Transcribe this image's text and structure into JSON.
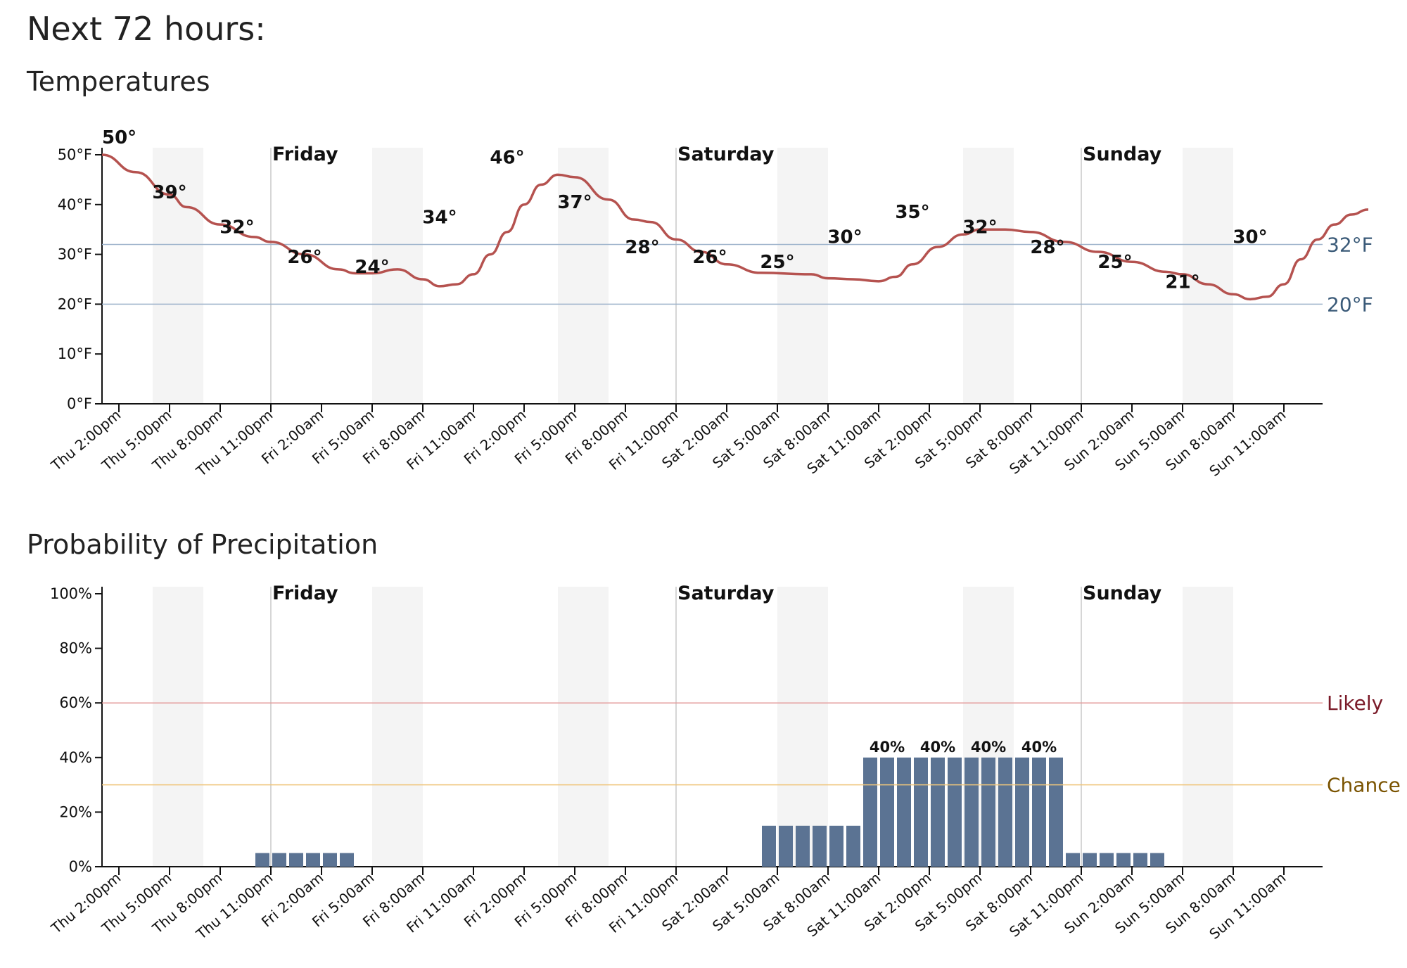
{
  "page": {
    "title": "Next 72 hours:",
    "temp_title": "Temperatures",
    "precip_title": "Probability of Precipitation"
  },
  "colors": {
    "temp_line": "#b5524f",
    "bar": "#5b7393",
    "freezing_line": "#9fb4cc",
    "likely": "#7a1a28",
    "chance": "#7a5300",
    "likely_line": "#e39a9a",
    "chance_line": "#efc57a",
    "night_shade": "#f4f4f4",
    "day_line": "#c8c8c8"
  },
  "chart_data": [
    {
      "type": "line",
      "title": "Temperatures",
      "x_unit": "hours from Thu 1:00pm",
      "x_range": [
        0,
        72
      ],
      "ylim": [
        0,
        50
      ],
      "y_ticks": [
        {
          "value": 0,
          "label": "0°F"
        },
        {
          "value": 10,
          "label": "10°F"
        },
        {
          "value": 20,
          "label": "20°F"
        },
        {
          "value": 30,
          "label": "30°F"
        },
        {
          "value": 40,
          "label": "40°F"
        },
        {
          "value": 50,
          "label": "50°F"
        }
      ],
      "x_ticks": [
        {
          "x": 1,
          "label": "Thu 2:00pm"
        },
        {
          "x": 4,
          "label": "Thu 5:00pm"
        },
        {
          "x": 7,
          "label": "Thu 8:00pm"
        },
        {
          "x": 10,
          "label": "Thu 11:00pm"
        },
        {
          "x": 13,
          "label": "Fri 2:00am"
        },
        {
          "x": 16,
          "label": "Fri 5:00am"
        },
        {
          "x": 19,
          "label": "Fri 8:00am"
        },
        {
          "x": 22,
          "label": "Fri 11:00am"
        },
        {
          "x": 25,
          "label": "Fri 2:00pm"
        },
        {
          "x": 28,
          "label": "Fri 5:00pm"
        },
        {
          "x": 31,
          "label": "Fri 8:00pm"
        },
        {
          "x": 34,
          "label": "Fri 11:00pm"
        },
        {
          "x": 37,
          "label": "Sat 2:00am"
        },
        {
          "x": 40,
          "label": "Sat 5:00am"
        },
        {
          "x": 43,
          "label": "Sat 8:00am"
        },
        {
          "x": 46,
          "label": "Sat 11:00am"
        },
        {
          "x": 49,
          "label": "Sat 2:00pm"
        },
        {
          "x": 52,
          "label": "Sat 5:00pm"
        },
        {
          "x": 55,
          "label": "Sat 8:00pm"
        },
        {
          "x": 58,
          "label": "Sat 11:00pm"
        },
        {
          "x": 61,
          "label": "Sun 2:00am"
        },
        {
          "x": 64,
          "label": "Sun 5:00am"
        },
        {
          "x": 67,
          "label": "Sun 8:00am"
        },
        {
          "x": 70,
          "label": "Sun 11:00am"
        }
      ],
      "day_markers": [
        {
          "x": 10,
          "label": "Friday"
        },
        {
          "x": 34,
          "label": "Saturday"
        },
        {
          "x": 58,
          "label": "Sunday"
        }
      ],
      "night_bands": [
        [
          3,
          6
        ],
        [
          16,
          19
        ],
        [
          27,
          30
        ],
        [
          40,
          43
        ],
        [
          51,
          54
        ],
        [
          64,
          67
        ]
      ],
      "reference_lines": [
        {
          "value": 32,
          "label": "32°F"
        },
        {
          "value": 20,
          "label": "20°F"
        }
      ],
      "series": [
        {
          "values": [
            [
              0,
              50
            ],
            [
              2,
              46.5
            ],
            [
              4,
              42
            ],
            [
              5,
              39.5
            ],
            [
              7,
              36
            ],
            [
              9,
              33.5
            ],
            [
              10,
              32.5
            ],
            [
              12,
              30
            ],
            [
              14,
              27
            ],
            [
              15,
              26.2
            ],
            [
              16,
              26.2
            ],
            [
              17.5,
              27
            ],
            [
              19,
              25
            ],
            [
              20,
              23.6
            ],
            [
              21,
              24
            ],
            [
              22,
              26
            ],
            [
              23,
              30
            ],
            [
              24,
              34.5
            ],
            [
              25,
              40
            ],
            [
              26,
              44
            ],
            [
              27,
              46
            ],
            [
              28,
              45.5
            ],
            [
              30,
              41
            ],
            [
              31.5,
              37
            ],
            [
              32.5,
              36.5
            ],
            [
              34,
              33
            ],
            [
              35.5,
              30.5
            ],
            [
              37,
              28
            ],
            [
              39,
              26.3
            ],
            [
              42,
              26
            ],
            [
              43,
              25.2
            ],
            [
              44.5,
              25
            ],
            [
              46,
              24.6
            ],
            [
              47,
              25.5
            ],
            [
              48,
              28
            ],
            [
              49.5,
              31.5
            ],
            [
              51,
              34
            ],
            [
              52,
              35
            ],
            [
              53.5,
              35
            ],
            [
              55,
              34.5
            ],
            [
              57,
              32.5
            ],
            [
              59,
              30.5
            ],
            [
              61,
              28.5
            ],
            [
              63,
              26.5
            ],
            [
              64,
              26
            ],
            [
              65.5,
              24
            ],
            [
              67,
              22
            ],
            [
              68,
              21
            ],
            [
              69,
              21.5
            ],
            [
              70,
              24
            ],
            [
              71,
              29
            ],
            [
              72,
              33
            ],
            [
              73,
              36
            ],
            [
              74,
              38
            ],
            [
              75,
              39
            ]
          ]
        }
      ],
      "annotations": [
        {
          "x": 0,
          "y": 50,
          "label": "50°"
        },
        {
          "x": 4,
          "y": 39,
          "label": "39°"
        },
        {
          "x": 8,
          "y": 32,
          "label": "32°"
        },
        {
          "x": 12,
          "y": 26,
          "label": "26°"
        },
        {
          "x": 16,
          "y": 24,
          "label": "24°"
        },
        {
          "x": 20,
          "y": 34,
          "label": "34°"
        },
        {
          "x": 24,
          "y": 46,
          "label": "46°"
        },
        {
          "x": 28,
          "y": 37,
          "label": "37°"
        },
        {
          "x": 32,
          "y": 28,
          "label": "28°"
        },
        {
          "x": 36,
          "y": 26,
          "label": "26°"
        },
        {
          "x": 40,
          "y": 25,
          "label": "25°"
        },
        {
          "x": 44,
          "y": 30,
          "label": "30°"
        },
        {
          "x": 48,
          "y": 35,
          "label": "35°"
        },
        {
          "x": 52,
          "y": 32,
          "label": "32°"
        },
        {
          "x": 56,
          "y": 28,
          "label": "28°"
        },
        {
          "x": 60,
          "y": 25,
          "label": "25°"
        },
        {
          "x": 64,
          "y": 21,
          "label": "21°"
        },
        {
          "x": 68,
          "y": 30,
          "label": "30°"
        }
      ]
    },
    {
      "type": "bar",
      "title": "Probability of Precipitation",
      "x_unit": "hours from Thu 1:00pm",
      "x_range": [
        0,
        72
      ],
      "ylim": [
        0,
        100
      ],
      "y_ticks": [
        {
          "value": 0,
          "label": "0%"
        },
        {
          "value": 20,
          "label": "20%"
        },
        {
          "value": 40,
          "label": "40%"
        },
        {
          "value": 60,
          "label": "60%"
        },
        {
          "value": 80,
          "label": "80%"
        },
        {
          "value": 100,
          "label": "100%"
        }
      ],
      "x_ticks": [
        {
          "x": 1,
          "label": "Thu 2:00pm"
        },
        {
          "x": 4,
          "label": "Thu 5:00pm"
        },
        {
          "x": 7,
          "label": "Thu 8:00pm"
        },
        {
          "x": 10,
          "label": "Thu 11:00pm"
        },
        {
          "x": 13,
          "label": "Fri 2:00am"
        },
        {
          "x": 16,
          "label": "Fri 5:00am"
        },
        {
          "x": 19,
          "label": "Fri 8:00am"
        },
        {
          "x": 22,
          "label": "Fri 11:00am"
        },
        {
          "x": 25,
          "label": "Fri 2:00pm"
        },
        {
          "x": 28,
          "label": "Fri 5:00pm"
        },
        {
          "x": 31,
          "label": "Fri 8:00pm"
        },
        {
          "x": 34,
          "label": "Fri 11:00pm"
        },
        {
          "x": 37,
          "label": "Sat 2:00am"
        },
        {
          "x": 40,
          "label": "Sat 5:00am"
        },
        {
          "x": 43,
          "label": "Sat 8:00am"
        },
        {
          "x": 46,
          "label": "Sat 11:00am"
        },
        {
          "x": 49,
          "label": "Sat 2:00pm"
        },
        {
          "x": 52,
          "label": "Sat 5:00pm"
        },
        {
          "x": 55,
          "label": "Sat 8:00pm"
        },
        {
          "x": 58,
          "label": "Sat 11:00pm"
        },
        {
          "x": 61,
          "label": "Sun 2:00am"
        },
        {
          "x": 64,
          "label": "Sun 5:00am"
        },
        {
          "x": 67,
          "label": "Sun 8:00am"
        },
        {
          "x": 70,
          "label": "Sun 11:00am"
        }
      ],
      "day_markers": [
        {
          "x": 10,
          "label": "Friday"
        },
        {
          "x": 34,
          "label": "Saturday"
        },
        {
          "x": 58,
          "label": "Sunday"
        }
      ],
      "night_bands": [
        [
          3,
          6
        ],
        [
          16,
          19
        ],
        [
          27,
          30
        ],
        [
          40,
          43
        ],
        [
          51,
          54
        ],
        [
          64,
          67
        ]
      ],
      "reference_lines": [
        {
          "value": 60,
          "label": "Likely"
        },
        {
          "value": 30,
          "label": "Chance"
        }
      ],
      "bars": [
        {
          "x": 9,
          "value": 5
        },
        {
          "x": 10,
          "value": 5
        },
        {
          "x": 11,
          "value": 5
        },
        {
          "x": 12,
          "value": 5
        },
        {
          "x": 13,
          "value": 5
        },
        {
          "x": 14,
          "value": 5
        },
        {
          "x": 39,
          "value": 15
        },
        {
          "x": 40,
          "value": 15
        },
        {
          "x": 41,
          "value": 15
        },
        {
          "x": 42,
          "value": 15
        },
        {
          "x": 43,
          "value": 15
        },
        {
          "x": 44,
          "value": 15
        },
        {
          "x": 45,
          "value": 40
        },
        {
          "x": 46,
          "value": 40
        },
        {
          "x": 47,
          "value": 40
        },
        {
          "x": 48,
          "value": 40
        },
        {
          "x": 49,
          "value": 40
        },
        {
          "x": 50,
          "value": 40
        },
        {
          "x": 51,
          "value": 40
        },
        {
          "x": 52,
          "value": 40
        },
        {
          "x": 53,
          "value": 40
        },
        {
          "x": 54,
          "value": 40
        },
        {
          "x": 55,
          "value": 40
        },
        {
          "x": 56,
          "value": 40
        },
        {
          "x": 57,
          "value": 5
        },
        {
          "x": 58,
          "value": 5
        },
        {
          "x": 59,
          "value": 5
        },
        {
          "x": 60,
          "value": 5
        },
        {
          "x": 61,
          "value": 5
        },
        {
          "x": 62,
          "value": 5
        }
      ],
      "bar_labels": [
        {
          "x": 46,
          "value": 40,
          "label": "40%"
        },
        {
          "x": 49,
          "value": 40,
          "label": "40%"
        },
        {
          "x": 52,
          "value": 40,
          "label": "40%"
        },
        {
          "x": 55,
          "value": 40,
          "label": "40%"
        }
      ]
    }
  ]
}
